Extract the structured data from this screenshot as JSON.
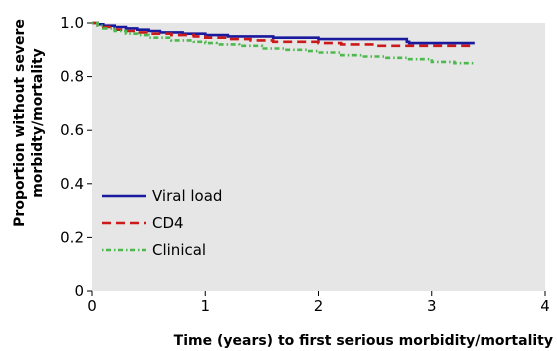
{
  "chart_data": {
    "type": "line",
    "title": "",
    "xlabel": "Time (years) to first serious morbidity/mortality",
    "ylabel": [
      "Proportion without severe",
      "morbidty/mortality"
    ],
    "xlim": [
      0,
      4
    ],
    "ylim": [
      0,
      1.0
    ],
    "x_ticks": [
      0,
      1,
      2,
      3,
      4
    ],
    "y_ticks": [
      0,
      0.2,
      0.4,
      0.6,
      0.8,
      1.0
    ],
    "y_tick_labels": [
      "0",
      "0.2",
      "0.4",
      "0.6",
      "0.8",
      "1.0"
    ],
    "grid": false,
    "legend_position": "bottom-left",
    "colors": {
      "plot_background": "#e6e6e6"
    },
    "series": [
      {
        "name": "Viral load",
        "color": "#1a1a9e",
        "line_style": "solid",
        "x": [
          0,
          0.05,
          0.1,
          0.2,
          0.3,
          0.4,
          0.5,
          0.6,
          0.8,
          1.0,
          1.2,
          1.4,
          1.6,
          1.8,
          2.0,
          2.2,
          2.5,
          2.75,
          2.78,
          2.8,
          3.0,
          3.2,
          3.38
        ],
        "y": [
          1.0,
          0.995,
          0.99,
          0.985,
          0.98,
          0.975,
          0.97,
          0.965,
          0.96,
          0.955,
          0.95,
          0.95,
          0.945,
          0.945,
          0.94,
          0.94,
          0.94,
          0.94,
          0.93,
          0.925,
          0.925,
          0.925,
          0.925
        ]
      },
      {
        "name": "CD4",
        "color": "#cc1a1a",
        "line_style": "dashed",
        "x": [
          0,
          0.05,
          0.1,
          0.2,
          0.3,
          0.4,
          0.5,
          0.7,
          0.9,
          1.0,
          1.2,
          1.4,
          1.6,
          1.8,
          2.0,
          2.2,
          2.5,
          2.8,
          3.0,
          3.2,
          3.38
        ],
        "y": [
          1.0,
          0.99,
          0.985,
          0.975,
          0.97,
          0.965,
          0.96,
          0.955,
          0.95,
          0.945,
          0.94,
          0.935,
          0.93,
          0.93,
          0.925,
          0.92,
          0.915,
          0.915,
          0.915,
          0.915,
          0.915
        ]
      },
      {
        "name": "Clinical",
        "color": "#4db84d",
        "line_style": "dotted-dashed",
        "x": [
          0,
          0.05,
          0.1,
          0.2,
          0.3,
          0.4,
          0.5,
          0.7,
          0.9,
          1.0,
          1.1,
          1.3,
          1.5,
          1.7,
          1.9,
          2.0,
          2.2,
          2.4,
          2.6,
          2.8,
          3.0,
          3.2,
          3.38
        ],
        "y": [
          1.0,
          0.99,
          0.98,
          0.97,
          0.96,
          0.955,
          0.945,
          0.935,
          0.93,
          0.925,
          0.92,
          0.915,
          0.905,
          0.9,
          0.895,
          0.89,
          0.88,
          0.875,
          0.87,
          0.865,
          0.855,
          0.85,
          0.85
        ]
      }
    ]
  }
}
